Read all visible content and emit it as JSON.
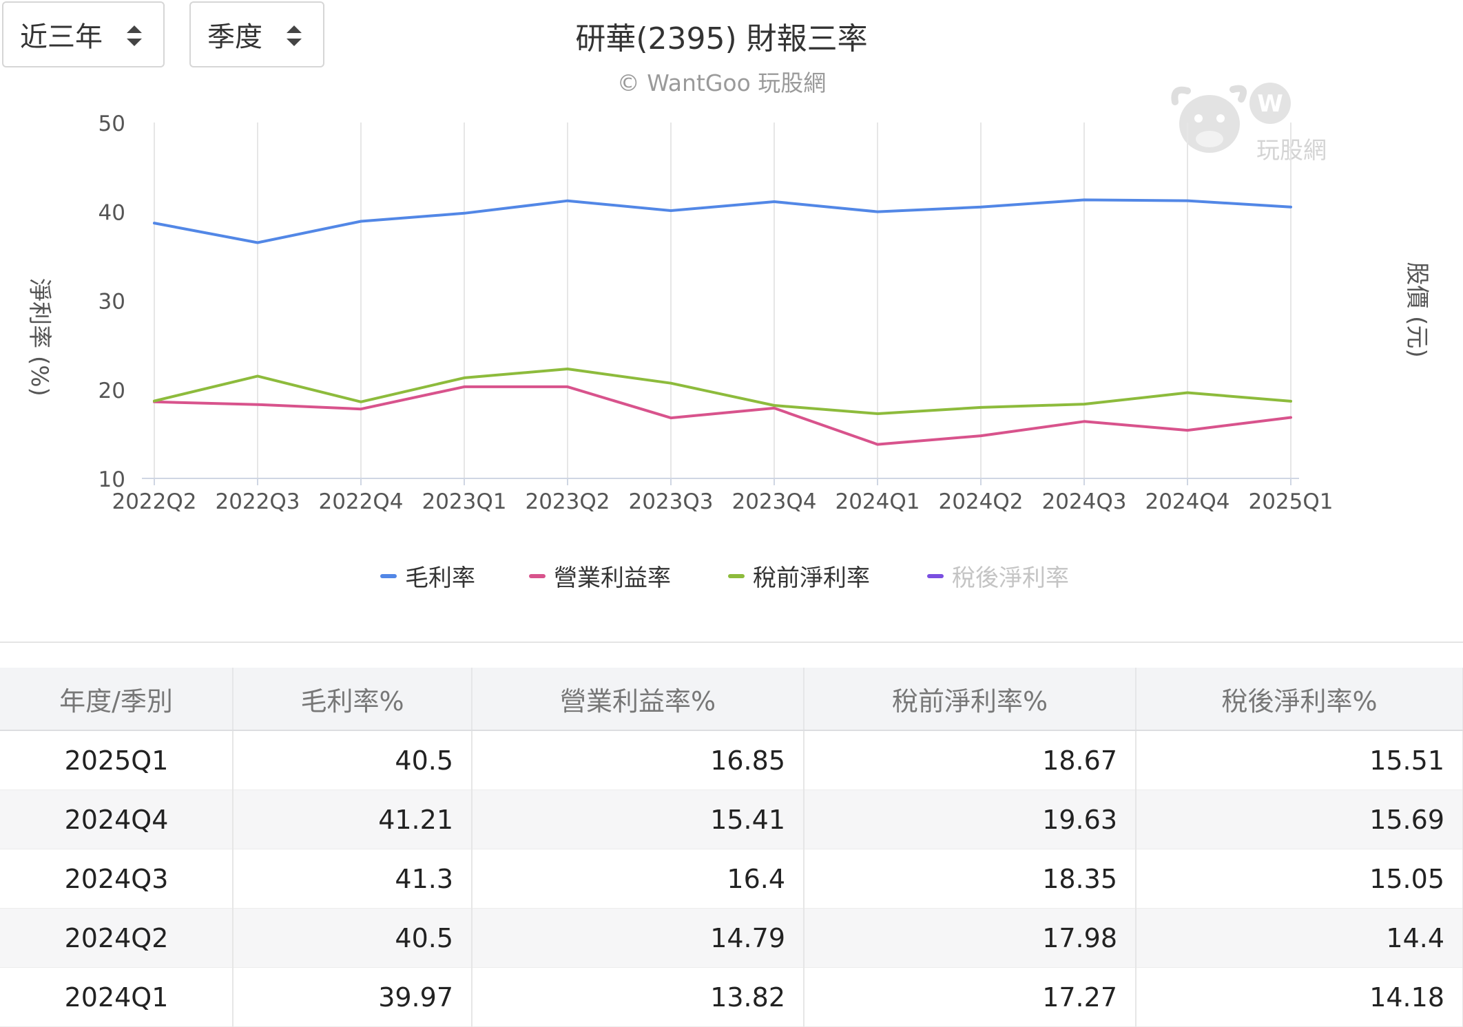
{
  "controls": {
    "period": "近三年",
    "frequency": "季度"
  },
  "header": {
    "title": "研華(2395) 財報三率",
    "credit": "© WantGoo 玩股網"
  },
  "watermark": {
    "text": "玩股網"
  },
  "chart_data": {
    "type": "line",
    "title": "研華(2395) 財報三率",
    "subtitle": "© WantGoo 玩股網",
    "ylabel": "淨利率 (%)",
    "y2label": "股價 (元)",
    "ylim": [
      10,
      50
    ],
    "yticks": [
      10,
      20,
      30,
      40,
      50
    ],
    "grid": true,
    "legend_position": "bottom",
    "categories": [
      "2022Q2",
      "2022Q3",
      "2022Q4",
      "2023Q1",
      "2023Q2",
      "2023Q3",
      "2023Q4",
      "2024Q1",
      "2024Q2",
      "2024Q3",
      "2024Q4",
      "2025Q1"
    ],
    "series": [
      {
        "name": "毛利率",
        "color": "#5287e6",
        "visible": true,
        "values": [
          38.7,
          36.5,
          38.9,
          39.8,
          41.2,
          40.1,
          41.1,
          39.97,
          40.5,
          41.3,
          41.21,
          40.5
        ]
      },
      {
        "name": "營業利益率",
        "color": "#d8538c",
        "visible": true,
        "values": [
          18.6,
          18.3,
          17.8,
          20.3,
          20.3,
          16.8,
          17.9,
          13.82,
          14.79,
          16.4,
          15.41,
          16.85
        ]
      },
      {
        "name": "稅前淨利率",
        "color": "#8dbb3c",
        "visible": true,
        "values": [
          18.7,
          21.5,
          18.6,
          21.3,
          22.3,
          20.7,
          18.2,
          17.27,
          17.98,
          18.35,
          19.63,
          18.67
        ]
      },
      {
        "name": "稅後淨利率",
        "color": "#7a4fe0",
        "visible": false,
        "values": [
          null,
          null,
          null,
          null,
          null,
          null,
          null,
          14.18,
          14.4,
          15.05,
          15.69,
          15.51
        ]
      }
    ]
  },
  "table": {
    "headers": [
      "年度/季別",
      "毛利率%",
      "營業利益率%",
      "稅前淨利率%",
      "稅後淨利率%"
    ],
    "rows": [
      [
        "2025Q1",
        "40.5",
        "16.85",
        "18.67",
        "15.51"
      ],
      [
        "2024Q4",
        "41.21",
        "15.41",
        "19.63",
        "15.69"
      ],
      [
        "2024Q3",
        "41.3",
        "16.4",
        "18.35",
        "15.05"
      ],
      [
        "2024Q2",
        "40.5",
        "14.79",
        "17.98",
        "14.4"
      ],
      [
        "2024Q1",
        "39.97",
        "13.82",
        "17.27",
        "14.18"
      ]
    ]
  }
}
